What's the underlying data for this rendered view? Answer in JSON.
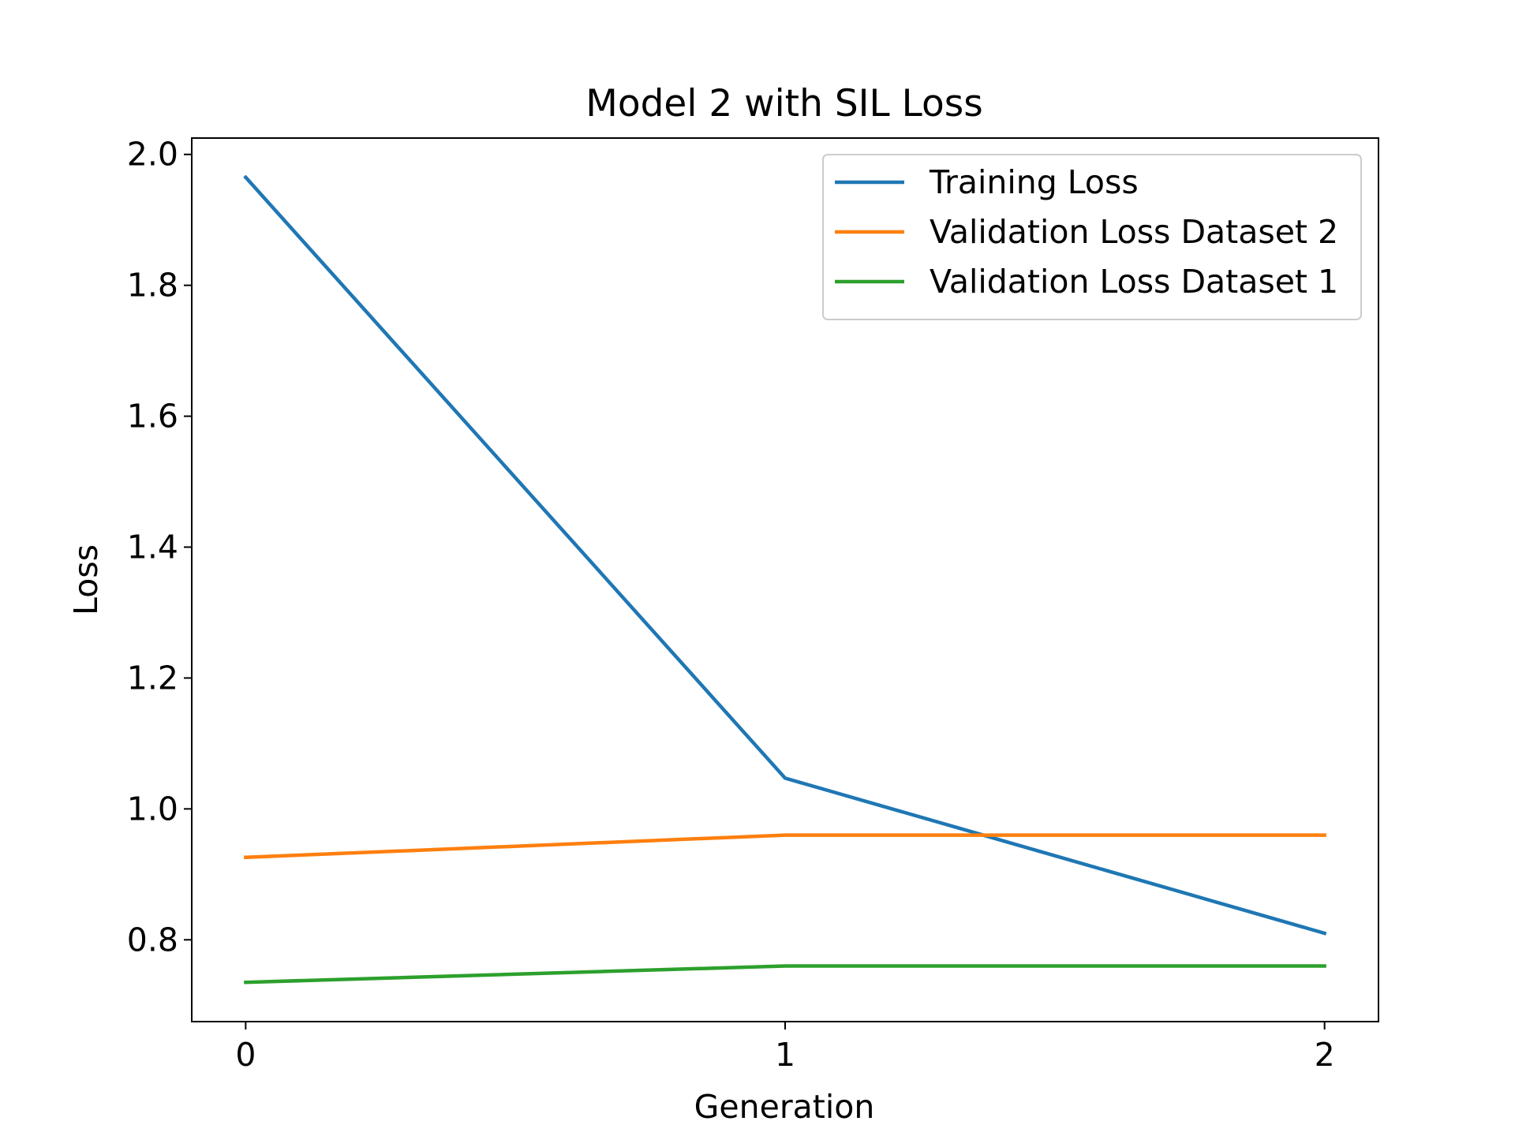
{
  "chart_data": {
    "type": "line",
    "title": "Model 2 with SIL Loss",
    "xlabel": "Generation",
    "ylabel": "Loss",
    "x": [
      0,
      1,
      2
    ],
    "xticks": [
      "0",
      "1",
      "2"
    ],
    "yticks": [
      "0.8",
      "1.0",
      "1.2",
      "1.4",
      "1.6",
      "1.8",
      "2.0"
    ],
    "xlim": [
      -0.1,
      2.1
    ],
    "ylim": [
      0.675,
      2.025
    ],
    "grid": false,
    "legend_position": "top-right",
    "series": [
      {
        "name": "Training Loss",
        "color": "#1f77b4",
        "values": [
          1.965,
          1.047,
          0.81
        ]
      },
      {
        "name": "Validation Loss Dataset 2",
        "color": "#ff7f0e",
        "values": [
          0.926,
          0.96,
          0.96
        ]
      },
      {
        "name": "Validation Loss Dataset 1",
        "color": "#2ca02c",
        "values": [
          0.735,
          0.76,
          0.76
        ]
      }
    ]
  }
}
